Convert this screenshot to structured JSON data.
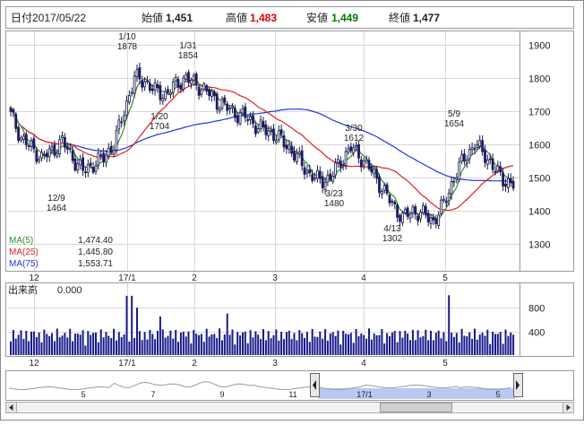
{
  "header": {
    "date_label": "日付",
    "date_value": "2017/05/22",
    "open_label": "始値",
    "open_value": "1,451",
    "high_label": "高値",
    "high_value": "1,483",
    "low_label": "安値",
    "low_value": "1,449",
    "close_label": "終値",
    "close_value": "1,477"
  },
  "colors": {
    "up": "#ffffff",
    "down": "#1a1a8c",
    "ma5": "#2e8b2e",
    "ma25": "#e02020",
    "ma75": "#2233dd",
    "high_value": "#e00000",
    "low_value": "#007700",
    "overview_fill": "#b8c8f0"
  },
  "ma_legend": [
    {
      "label": "MA(5)",
      "value": "1,474.40"
    },
    {
      "label": "MA(25)",
      "value": "1,445.80"
    },
    {
      "label": "MA(75)",
      "value": "1,553.71"
    }
  ],
  "volume_panel": {
    "label": "出来高",
    "value": "0.000"
  },
  "chart_data": {
    "type": "candlestick",
    "y_ticks": [
      "1900",
      "1800",
      "1700",
      "1600",
      "1500",
      "1400",
      "1300"
    ],
    "y_tick_values": [
      1900,
      1800,
      1700,
      1600,
      1500,
      1400,
      1300
    ],
    "ylim": [
      1220,
      1940
    ],
    "x_ticks": [
      "12",
      "17/1",
      "2",
      "3",
      "4",
      "5"
    ],
    "volume_ticks": [
      "800",
      "400"
    ],
    "volume_tick_values": [
      800,
      400
    ],
    "volume_ylim": [
      0,
      1150
    ],
    "annotations": [
      {
        "date": "1/10",
        "value": "1878"
      },
      {
        "date": "1/31",
        "value": "1854"
      },
      {
        "date": "1/20",
        "value": "1704"
      },
      {
        "date": "12/9",
        "value": "1464"
      },
      {
        "date": "3/30",
        "value": "1612"
      },
      {
        "date": "3/23",
        "value": "1480"
      },
      {
        "date": "5/9",
        "value": "1654"
      },
      {
        "date": "4/13",
        "value": "1302"
      }
    ],
    "overview_ticks": [
      "5",
      "7",
      "9",
      "11",
      "17/1",
      "3",
      "5"
    ]
  }
}
